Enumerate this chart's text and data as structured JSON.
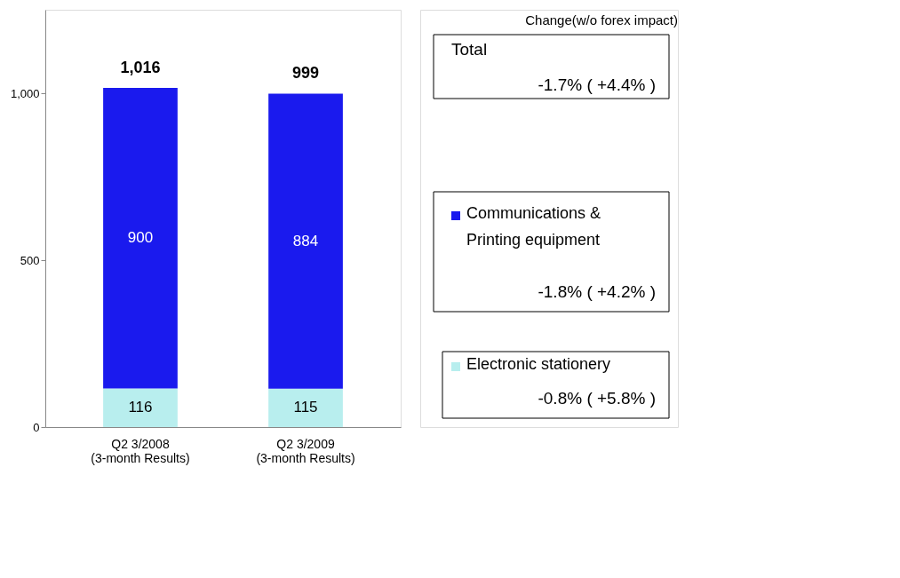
{
  "chart_data": {
    "type": "bar",
    "stacked": true,
    "categories": [
      "Q2 3/2008\n(3-month Results)",
      "Q2 3/2009\n(3-month Results)"
    ],
    "series": [
      {
        "name": "Electronic stationery",
        "color": "#b8eeee",
        "values": [
          116,
          115
        ]
      },
      {
        "name": "Communications &\nPrinting equipment",
        "color": "#1a1aee",
        "values": [
          900,
          884
        ]
      }
    ],
    "totals": [
      "1,016",
      "999"
    ],
    "data_labels": true,
    "ylim": [
      0,
      1250
    ],
    "yticks": [
      0,
      {
        "value": 500,
        "label": "500"
      },
      {
        "value": 1000,
        "label": "1,000"
      }
    ],
    "grid": false,
    "legend": "right",
    "annotations": [
      "Change(w/o forex impact)",
      "Total",
      "-1.7% ( +4.4% )",
      "-1.8% ( +4.2% )",
      "-0.8% ( +5.8% )"
    ]
  }
}
